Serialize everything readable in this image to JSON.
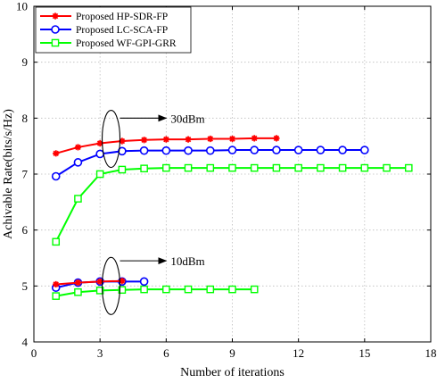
{
  "chart_data": {
    "type": "line",
    "title": "",
    "xlabel": "Number of iterations",
    "ylabel": "Achivable Rate(bits/s/Hz)",
    "xlim": [
      0,
      18
    ],
    "ylim": [
      4,
      10
    ],
    "x_ticks": [
      0,
      3,
      6,
      9,
      12,
      15,
      18
    ],
    "y_ticks": [
      4,
      5,
      6,
      7,
      8,
      9,
      10
    ],
    "grid": true,
    "legend_position": "top-left",
    "series": [
      {
        "name": "Proposed HP-SDR-FP",
        "color": "#ff0000",
        "marker": "star",
        "groups": [
          {
            "x": [
              1,
              2,
              3,
              4,
              5,
              6,
              7,
              8,
              9,
              10,
              11
            ],
            "y": [
              7.37,
              7.48,
              7.55,
              7.59,
              7.61,
              7.62,
              7.62,
              7.63,
              7.63,
              7.64,
              7.64
            ]
          },
          {
            "x": [
              1,
              2,
              3,
              4
            ],
            "y": [
              5.03,
              5.06,
              5.08,
              5.09
            ]
          }
        ]
      },
      {
        "name": "Proposed LC-SCA-FP",
        "color": "#0000ff",
        "marker": "circle",
        "groups": [
          {
            "x": [
              1,
              2,
              3,
              4,
              5,
              6,
              7,
              8,
              9,
              10,
              11,
              12,
              13,
              14,
              15
            ],
            "y": [
              6.96,
              7.21,
              7.36,
              7.41,
              7.42,
              7.42,
              7.42,
              7.42,
              7.43,
              7.43,
              7.43,
              7.43,
              7.43,
              7.43,
              7.43
            ]
          },
          {
            "x": [
              1,
              2,
              3,
              4,
              5
            ],
            "y": [
              4.97,
              5.06,
              5.08,
              5.08,
              5.08
            ]
          }
        ]
      },
      {
        "name": "Proposed WF-GPI-GRR",
        "color": "#00ff00",
        "marker": "square",
        "groups": [
          {
            "x": [
              1,
              2,
              3,
              4,
              5,
              6,
              7,
              8,
              9,
              10,
              11,
              12,
              13,
              14,
              15,
              16,
              17
            ],
            "y": [
              5.79,
              6.56,
              7.0,
              7.08,
              7.1,
              7.11,
              7.11,
              7.11,
              7.11,
              7.11,
              7.11,
              7.11,
              7.11,
              7.11,
              7.11,
              7.11,
              7.11
            ]
          },
          {
            "x": [
              1,
              2,
              3,
              4,
              5,
              6,
              7,
              8,
              9,
              10
            ],
            "y": [
              4.82,
              4.89,
              4.92,
              4.93,
              4.94,
              4.94,
              4.94,
              4.94,
              4.94,
              4.94
            ]
          }
        ]
      }
    ],
    "annotations": [
      {
        "text": "30dBm",
        "ellipse_center": [
          3.5,
          7.63
        ],
        "arrow_to": [
          6.0,
          8.0
        ]
      },
      {
        "text": "10dBm",
        "ellipse_center": [
          3.5,
          5.0
        ],
        "arrow_to": [
          6.0,
          5.45
        ]
      }
    ]
  }
}
